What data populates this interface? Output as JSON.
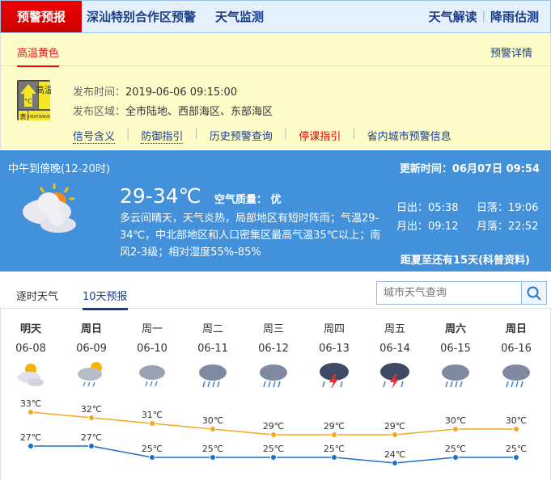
{
  "nav": {
    "active": "预警预报",
    "items": [
      "深汕特别合作区预警",
      "天气监测"
    ],
    "right": [
      "天气解读",
      "降雨估测"
    ]
  },
  "warning": {
    "tab": "高温黄色",
    "detail_link": "预警详情",
    "badge": {
      "title": "高温",
      "level": "黄",
      "en": "HEATWAVE",
      "unit": "°C"
    },
    "time_label": "发布时间：",
    "time": "2019-06-06 09:15:00",
    "area_label": "发布区域：",
    "area": "全市陆地、西部海区、东部海区",
    "links": [
      "信号含义",
      "防御指引",
      "历史预警查询",
      "停课指引",
      "省内城市预警信息"
    ]
  },
  "now": {
    "period": "中午到傍晚(12-20时)",
    "update": "更新时间：06月07日 09:54",
    "temp": "29-34℃",
    "aq": "空气质量： 优",
    "desc": "多云间晴天，天气炎热，局部地区有短时阵雨；气温29-34℃，中北部地区和人口密集区最高气温35℃以上；南风2-3级；相对湿度55%-85%",
    "sunrise": "日出：05:38",
    "sunset": "日落：19:06",
    "moonrise": "月出：09:12",
    "moonset": "月落：22:52",
    "solar": "距夏至还有15天(科普资料)",
    "icon": "partly-cloudy-icon"
  },
  "tabs": [
    "逐时天气",
    "10天预报"
  ],
  "search": {
    "placeholder": "城市天气查询"
  },
  "forecast": [
    {
      "name": "明天",
      "date": "06-08",
      "icon": "partly-cloudy",
      "bold": true
    },
    {
      "name": "周日",
      "date": "06-09",
      "icon": "sun-rain",
      "bold": true
    },
    {
      "name": "周一",
      "date": "06-10",
      "icon": "rain",
      "bold": false
    },
    {
      "name": "周二",
      "date": "06-11",
      "icon": "heavy-rain",
      "bold": false
    },
    {
      "name": "周三",
      "date": "06-12",
      "icon": "heavy-rain",
      "bold": false
    },
    {
      "name": "周四",
      "date": "06-13",
      "icon": "thunderstorm",
      "bold": false
    },
    {
      "name": "周五",
      "date": "06-14",
      "icon": "thunderstorm",
      "bold": false
    },
    {
      "name": "周六",
      "date": "06-15",
      "icon": "heavy-rain",
      "bold": true
    },
    {
      "name": "周日",
      "date": "06-16",
      "icon": "heavy-rain",
      "bold": true
    }
  ],
  "chart_data": {
    "type": "line",
    "categories": [
      "06-08",
      "06-09",
      "06-10",
      "06-11",
      "06-12",
      "06-13",
      "06-14",
      "06-15",
      "06-16"
    ],
    "series": [
      {
        "values": [
          33,
          32,
          31,
          30,
          29,
          29,
          29,
          30,
          30
        ],
        "color": "#f5a623"
      },
      {
        "values": [
          27,
          27,
          25,
          25,
          25,
          25,
          24,
          25,
          25
        ],
        "color": "#1a6fc9"
      }
    ],
    "unit": "℃"
  },
  "colors": {
    "accent": "#1b3d87",
    "alert": "#e00000",
    "panel": "#4390db",
    "warn_bg": "#fefdc9"
  }
}
